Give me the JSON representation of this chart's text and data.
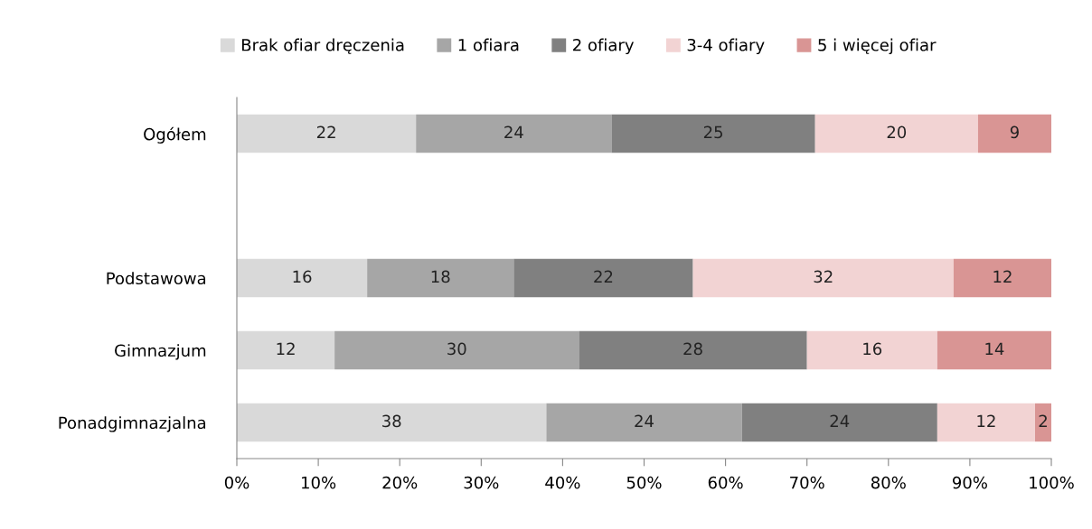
{
  "chart_data": {
    "type": "bar",
    "orientation": "horizontal",
    "stacked": true,
    "data_labels": true,
    "legend": "top",
    "grid": false,
    "categories": [
      "Ogółem",
      null,
      "Podstawowa",
      "Gimnazjum",
      "Ponadgimnazjalna"
    ],
    "series": [
      {
        "name": "Brak ofiar dręczenia",
        "color": "#d9d9d9",
        "values": [
          22,
          null,
          16,
          12,
          38
        ]
      },
      {
        "name": "1 ofiara",
        "color": "#a6a6a6",
        "values": [
          24,
          null,
          18,
          30,
          24
        ]
      },
      {
        "name": "2 ofiary",
        "color": "#808080",
        "values": [
          25,
          null,
          22,
          28,
          24
        ]
      },
      {
        "name": "3-4 ofiary",
        "color": "#f2d3d3",
        "values": [
          20,
          null,
          32,
          16,
          12
        ]
      },
      {
        "name": "5 i więcej ofiar",
        "color": "#d99594",
        "values": [
          9,
          null,
          12,
          14,
          2
        ]
      }
    ],
    "xlim": [
      0,
      100
    ],
    "xticks": [
      {
        "value": 0,
        "label": "0%"
      },
      {
        "value": 10,
        "label": "10%"
      },
      {
        "value": 20,
        "label": "20%"
      },
      {
        "value": 30,
        "label": "30%"
      },
      {
        "value": 40,
        "label": "40%"
      },
      {
        "value": 50,
        "label": "50%"
      },
      {
        "value": 60,
        "label": "60%"
      },
      {
        "value": 70,
        "label": "70%"
      },
      {
        "value": 80,
        "label": "80%"
      },
      {
        "value": 90,
        "label": "90%"
      },
      {
        "value": 100,
        "label": "100%"
      }
    ]
  }
}
